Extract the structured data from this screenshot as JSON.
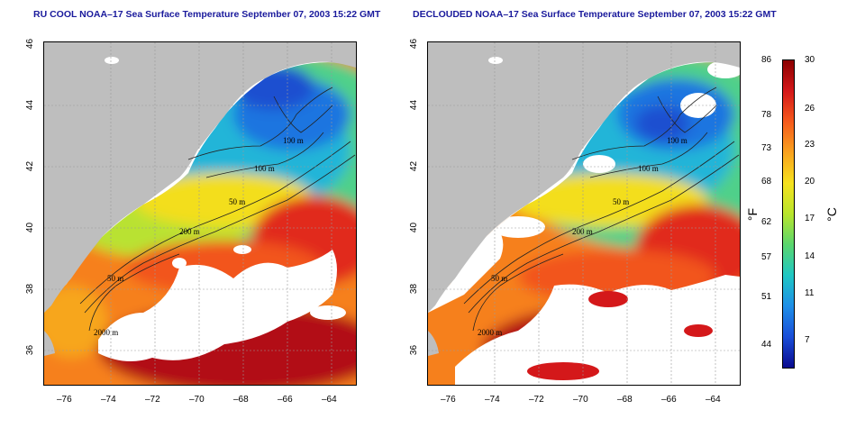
{
  "maps": [
    {
      "id": "left",
      "title": "RU COOL NOAA–17 Sea Surface Temperature September 07, 2003 15:22 GMT",
      "cloud_cover": "heavy"
    },
    {
      "id": "right",
      "title": "DECLOUDED NOAA–17 Sea Surface Temperature September 07, 2003 15:22 GMT",
      "cloud_cover": "partial"
    }
  ],
  "axes": {
    "lon_ticks": [
      "–76",
      "–74",
      "–72",
      "–70",
      "–68",
      "–66",
      "–64"
    ],
    "lat_ticks": [
      "36",
      "38",
      "40",
      "42",
      "44",
      "46"
    ]
  },
  "contour_labels": [
    "100 m",
    "100 m",
    "50 m",
    "200 m",
    "50 m",
    "2000 m"
  ],
  "colorbar": {
    "fahrenheit_ticks": [
      "86",
      "78",
      "73",
      "68",
      "62",
      "57",
      "51",
      "44"
    ],
    "celsius_ticks": [
      "30",
      "26",
      "23",
      "20",
      "17",
      "14",
      "11",
      "7"
    ],
    "fahrenheit_unit": "°F",
    "celsius_unit": "°C",
    "colors": [
      "#8b0000",
      "#d4181a",
      "#f55a1c",
      "#f9a21e",
      "#f6e21f",
      "#b8e52c",
      "#5ad66e",
      "#1fc7c4",
      "#1e8fe8",
      "#1a4ed8",
      "#0a0a8f"
    ]
  },
  "colors": {
    "land": "#bebebe",
    "cloud": "#ffffff",
    "title": "#1a1a9c"
  }
}
